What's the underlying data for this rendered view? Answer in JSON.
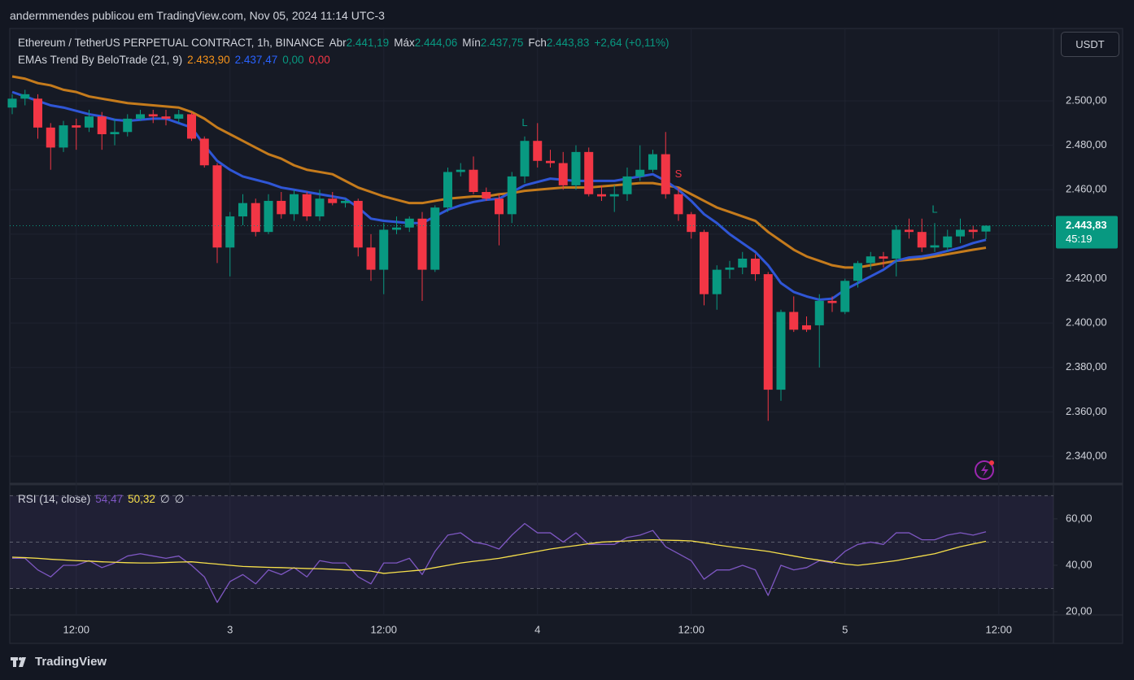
{
  "header": "andermmendes publicou em TradingView.com, Nov 05, 2024 11:14 UTC-3",
  "currency_button": "USDT",
  "footer_logo": "TradingView",
  "chart_data": [
    {
      "type": "candlestick",
      "title": "Ethereum / TetherUS PERPETUAL CONTRACT, 1h, BINANCE",
      "ohlc_legend": [
        {
          "key": "Abr",
          "value": "2.441,19"
        },
        {
          "key": "Máx",
          "value": "2.444,06"
        },
        {
          "key": "Mín",
          "value": "2.437,75"
        },
        {
          "key": "Fch",
          "value": "2.443,83"
        }
      ],
      "change_label": "+2,64 (+0,11%)",
      "last_price_label": "2.443,83",
      "countdown": "45:19",
      "categories": [
        null,
        null,
        null,
        null,
        null,
        "12:00",
        null,
        null,
        null,
        null,
        null,
        null,
        null,
        null,
        null,
        null,
        null,
        "3",
        null,
        null,
        null,
        null,
        null,
        null,
        null,
        null,
        null,
        null,
        null,
        "12:00",
        null,
        null,
        null,
        null,
        null,
        null,
        null,
        null,
        null,
        null,
        null,
        "4",
        null,
        null,
        null,
        null,
        null,
        null,
        null,
        null,
        null,
        null,
        null,
        "12:00",
        null,
        null,
        null,
        null,
        null,
        null,
        null,
        null,
        null,
        null,
        null,
        "5",
        null,
        null,
        null,
        null,
        null,
        null,
        null,
        null,
        null,
        null,
        null,
        "12:00"
      ],
      "open": [
        2497,
        2501,
        2501,
        2488,
        2479,
        2489,
        2488,
        2493,
        2485,
        2486,
        2492,
        2494,
        2493,
        2492,
        2494,
        2483,
        2471,
        2434,
        2448,
        2454,
        2441,
        2455,
        2449,
        2458,
        2448,
        2456,
        2454,
        2455,
        2434,
        2424,
        2442,
        2443,
        2447,
        2424,
        2452,
        2468,
        2469,
        2459,
        2456,
        2449,
        2466,
        2482,
        2473,
        2472,
        2462,
        2477,
        2458,
        2457,
        2458,
        2466,
        2469,
        2476,
        2458,
        2449,
        2441,
        2413,
        2424,
        2425,
        2429,
        2422,
        2370,
        2405,
        2399,
        2399,
        2410,
        2405,
        2419,
        2427,
        2430,
        2429,
        2442,
        2441,
        2434,
        2434,
        2439,
        2442,
        2441.19,
        null
      ],
      "high": [
        2503,
        2505,
        2503,
        2490,
        2491,
        2492,
        2496,
        2495,
        2492,
        2494,
        2496,
        2496,
        2496,
        2496,
        2495,
        2484,
        2472,
        2450,
        2458,
        2456,
        2458,
        2459,
        2460,
        2459,
        2460,
        2459,
        2456,
        2456,
        2440,
        2445,
        2448,
        2448,
        2450,
        2453,
        2470,
        2472,
        2475,
        2461,
        2458,
        2468,
        2484,
        2490,
        2478,
        2477,
        2480,
        2479,
        2462,
        2462,
        2470,
        2480,
        2478,
        2486,
        2461,
        2450,
        2442,
        2426,
        2428,
        2432,
        2431,
        2423,
        2406,
        2412,
        2403,
        2413,
        2412,
        2420,
        2428,
        2432,
        2432,
        2444,
        2447,
        2447,
        2445,
        2442,
        2447,
        2444,
        2444.06,
        null
      ],
      "low": [
        2494,
        2498,
        2483,
        2469,
        2477,
        2478,
        2486,
        2478,
        2480,
        2484,
        2491,
        2490,
        2489,
        2490,
        2482,
        2470,
        2427,
        2421,
        2444,
        2439,
        2440,
        2447,
        2446,
        2446,
        2446,
        2453,
        2452,
        2430,
        2419,
        2413,
        2440,
        2441,
        2410,
        2423,
        2450,
        2466,
        2458,
        2455,
        2435,
        2445,
        2463,
        2470,
        2470,
        2460,
        2460,
        2457,
        2455,
        2450,
        2455,
        2464,
        2468,
        2456,
        2446,
        2438,
        2408,
        2406,
        2420,
        2422,
        2419,
        2356,
        2365,
        2396,
        2396,
        2380,
        2405,
        2404,
        2416,
        2424,
        2425,
        2421,
        2438,
        2432,
        2432,
        2432,
        2436,
        2438,
        2437.75,
        null
      ],
      "close": [
        2501,
        2503,
        2488,
        2479,
        2489,
        2488,
        2493,
        2485,
        2486,
        2492,
        2494,
        2493,
        2492,
        2494,
        2483,
        2471,
        2434,
        2448,
        2454,
        2441,
        2455,
        2449,
        2458,
        2448,
        2456,
        2454,
        2455,
        2434,
        2424,
        2442,
        2443,
        2447,
        2424,
        2452,
        2468,
        2469,
        2459,
        2456,
        2449,
        2466,
        2482,
        2473,
        2472,
        2462,
        2477,
        2458,
        2457,
        2458,
        2466,
        2469,
        2476,
        2458,
        2449,
        2441,
        2413,
        2424,
        2425,
        2429,
        2422,
        2370,
        2405,
        2397,
        2397,
        2410,
        2409,
        2419,
        2427,
        2430,
        2429,
        2442,
        2441,
        2434,
        2435,
        2439,
        2442,
        2441,
        2443.83,
        null
      ],
      "up_color": "#089981",
      "down_color": "#f23645",
      "signals": [
        null,
        null,
        null,
        null,
        null,
        null,
        null,
        null,
        null,
        null,
        null,
        null,
        null,
        null,
        null,
        null,
        null,
        null,
        null,
        null,
        null,
        null,
        null,
        null,
        null,
        null,
        null,
        null,
        null,
        null,
        null,
        null,
        null,
        null,
        null,
        null,
        null,
        null,
        null,
        null,
        "L",
        null,
        null,
        null,
        null,
        null,
        null,
        null,
        null,
        null,
        null,
        null,
        "S",
        null,
        null,
        null,
        null,
        null,
        null,
        null,
        null,
        null,
        null,
        null,
        null,
        null,
        null,
        null,
        null,
        null,
        null,
        null,
        "L",
        null,
        null,
        null,
        null,
        null
      ],
      "signal_colors": {
        "L": "#089981",
        "S": "#f23645"
      },
      "indicator": {
        "name": "EMAs Trend By BeloTrade (21, 9)",
        "value_labels": [
          "2.433,90",
          "2.437,47",
          "0,00",
          "0,00"
        ],
        "value_label_colors": [
          "#f7931a",
          "#2962ff",
          "#089981",
          "#f23645"
        ],
        "series": [
          {
            "color": "#c57b1c",
            "values": [
              2511,
              2510,
              2508,
              2507,
              2505,
              2504,
              2502,
              2501,
              2500,
              2499,
              2498.5,
              2498,
              2497.5,
              2497,
              2495,
              2492,
              2488,
              2485,
              2482,
              2479,
              2476,
              2474,
              2471,
              2469,
              2468,
              2467,
              2464,
              2461,
              2459,
              2457,
              2455.5,
              2454,
              2454,
              2455,
              2456,
              2456.5,
              2457,
              2457,
              2458,
              2458.5,
              2459.5,
              2460,
              2460.5,
              2461,
              2461,
              2461,
              2461.5,
              2462,
              2462.5,
              2463,
              2463,
              2462,
              2461,
              2458,
              2455,
              2452,
              2450,
              2448,
              2446,
              2441,
              2437,
              2433,
              2430,
              2428,
              2426,
              2425,
              2425,
              2426,
              2427,
              2428,
              2428.5,
              2429,
              2430,
              2431,
              2432,
              2433,
              2433.9,
              null
            ]
          },
          {
            "color": "#2f56d6",
            "values": [
              2504,
              2502,
              2500,
              2498,
              2497,
              2495.5,
              2494,
              2493,
              2491.5,
              2491,
              2491.5,
              2492,
              2492,
              2490,
              2488,
              2480,
              2473,
              2469,
              2466,
              2464.5,
              2463,
              2461,
              2460,
              2459,
              2458,
              2457,
              2456,
              2452,
              2447,
              2446,
              2445.5,
              2445,
              2445,
              2448,
              2451,
              2453,
              2454.5,
              2455.5,
              2456,
              2459,
              2462,
              2463.5,
              2465,
              2464.5,
              2464,
              2464,
              2464,
              2464,
              2465,
              2466,
              2467,
              2464,
              2460,
              2455,
              2449,
              2445,
              2440,
              2436,
              2432,
              2426,
              2418,
              2414,
              2412,
              2410.5,
              2411,
              2415,
              2418,
              2421,
              2424,
              2428,
              2429.5,
              2430,
              2431,
              2432.5,
              2434,
              2436,
              2437.47,
              null
            ]
          }
        ]
      },
      "ylim": [
        2328.3,
        2532.6
      ],
      "yticks": [
        {
          "value": 2340,
          "label": "2.340,00"
        },
        {
          "value": 2360,
          "label": "2.360,00"
        },
        {
          "value": 2380,
          "label": "2.380,00"
        },
        {
          "value": 2400,
          "label": "2.400,00"
        },
        {
          "value": 2420,
          "label": "2.420,00"
        },
        {
          "value": 2440,
          "label": "2.440,00"
        },
        {
          "value": 2460,
          "label": "2.460,00"
        },
        {
          "value": 2480,
          "label": "2.480,00"
        },
        {
          "value": 2500,
          "label": "2.500,00"
        }
      ],
      "grid": true
    },
    {
      "type": "line",
      "title": "RSI (14, close)",
      "value_labels": [
        "54,47",
        "50,32",
        "∅",
        "∅"
      ],
      "value_label_colors": [
        "#7e57c2",
        "#f7e04b",
        "#d1d4dc",
        "#d1d4dc"
      ],
      "series": [
        {
          "color": "#7e57c2",
          "values": [
            43,
            43,
            38,
            35,
            40,
            40,
            42,
            39,
            41,
            44,
            45,
            44,
            43,
            44,
            40,
            35,
            24,
            33,
            36,
            32,
            38,
            36,
            39,
            35,
            42,
            41,
            41,
            35,
            32,
            41,
            41,
            43,
            36,
            46,
            53,
            54,
            50,
            49,
            47,
            53,
            58,
            54,
            54,
            50,
            54,
            49,
            49,
            49,
            52,
            53,
            55,
            48,
            45,
            42,
            34,
            38,
            38,
            40,
            38,
            27,
            40,
            38,
            39,
            42,
            41,
            46,
            49,
            50,
            49,
            54,
            54,
            51,
            51,
            53,
            54,
            53,
            54.47,
            null
          ]
        },
        {
          "color": "#f7e04b",
          "values": [
            43.5,
            43.3,
            43,
            42.6,
            42.3,
            42,
            41.8,
            41.5,
            41.3,
            41.1,
            41,
            41,
            41.2,
            41.4,
            41.5,
            41,
            40.5,
            40,
            39.5,
            39.3,
            39.1,
            39,
            38.8,
            38.6,
            38.5,
            38.3,
            38,
            37.8,
            37.5,
            36.5,
            37,
            37.5,
            38,
            39,
            40,
            41,
            41.7,
            42.3,
            43,
            44,
            45,
            46,
            47,
            47.8,
            48.5,
            49.3,
            50,
            50.3,
            50.5,
            50.8,
            51,
            50.8,
            50.7,
            50.5,
            49.7,
            48.8,
            48,
            47.3,
            46.7,
            46,
            45,
            44,
            43,
            42.2,
            41.4,
            40.5,
            40,
            40.6,
            41.3,
            42,
            43,
            44,
            45,
            46.5,
            48,
            49.2,
            50.32,
            null
          ]
        }
      ],
      "bands": [
        30,
        50,
        70
      ],
      "ylim": [
        19.3,
        74
      ],
      "yticks": [
        {
          "value": 20,
          "label": "20,00"
        },
        {
          "value": 40,
          "label": "40,00"
        },
        {
          "value": 60,
          "label": "60,00"
        }
      ]
    }
  ]
}
